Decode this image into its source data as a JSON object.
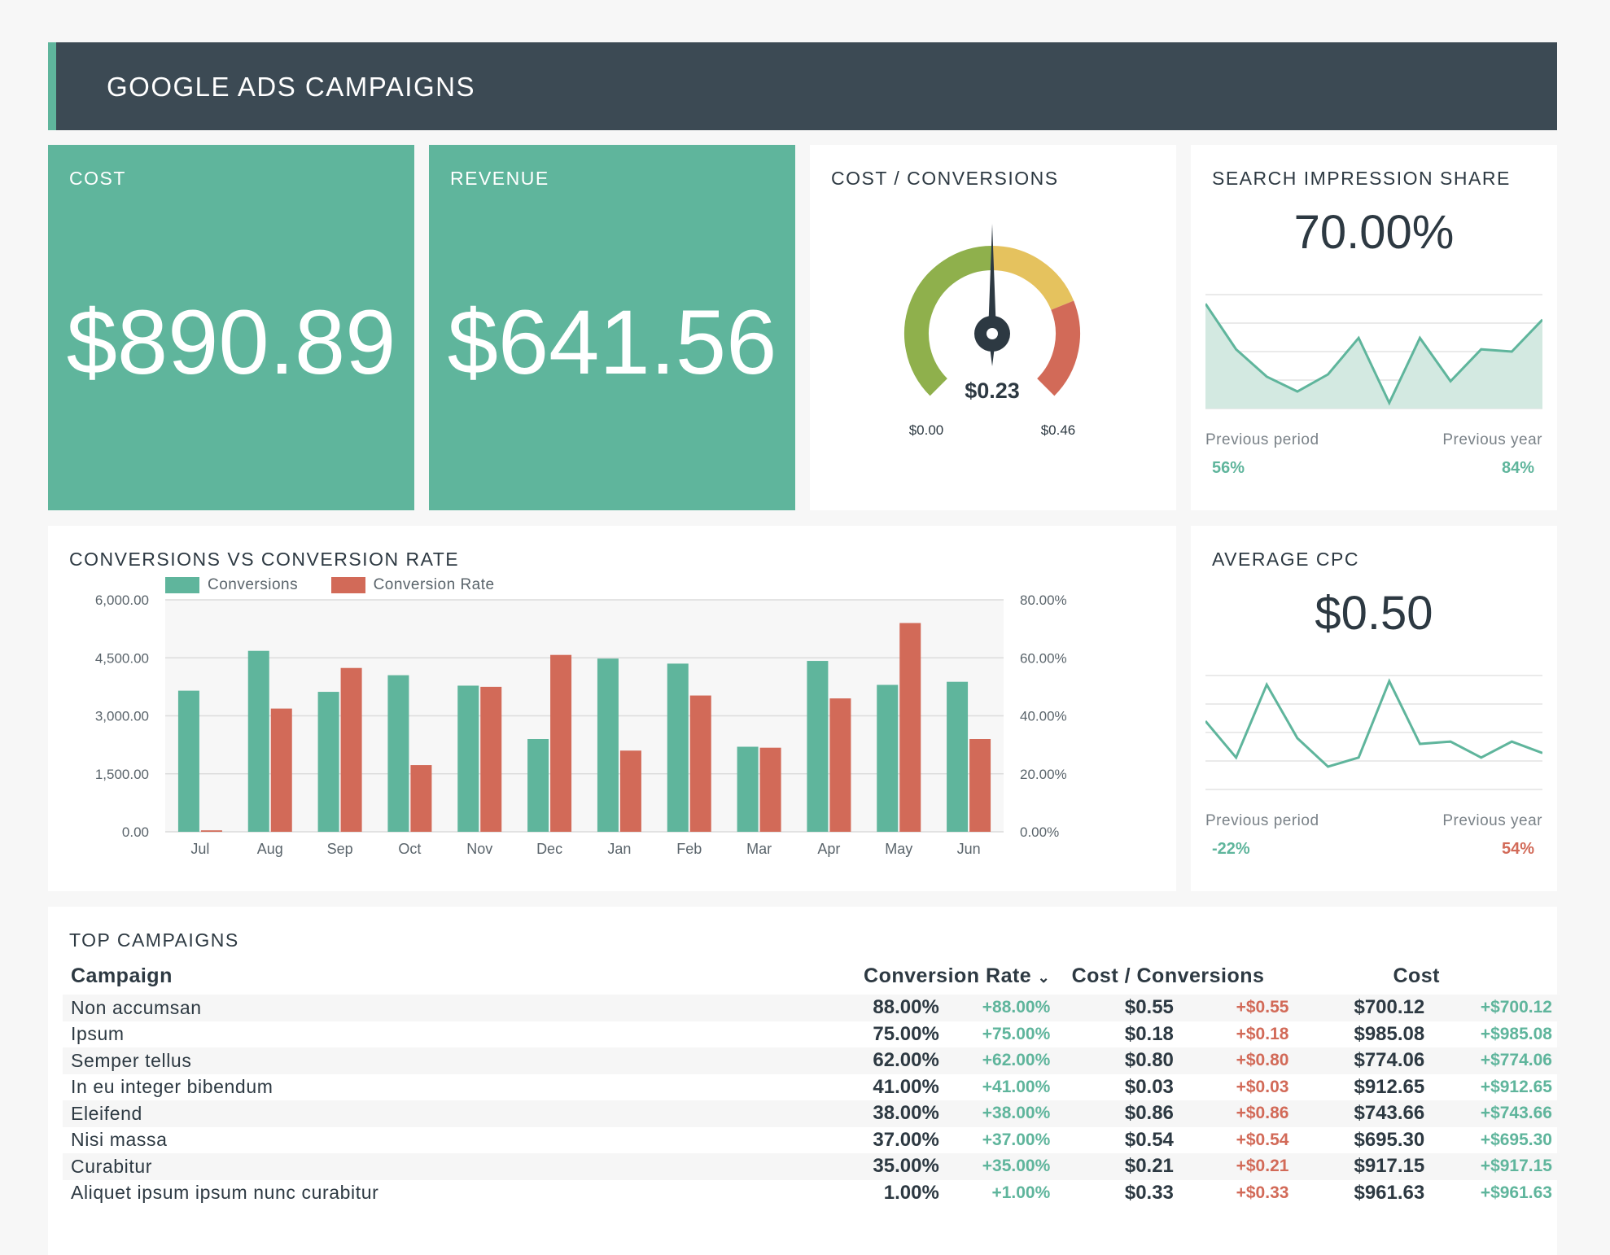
{
  "header": {
    "title": "GOOGLE ADS CAMPAIGNS"
  },
  "colors": {
    "accent": "#5fb59c",
    "negative": "#d26a58",
    "header_bg": "#3c4a54",
    "gauge_green": "#8fb04c",
    "gauge_yellow": "#e5c25e",
    "gauge_red": "#d26a58"
  },
  "cost": {
    "label": "COST",
    "value": "$890.89"
  },
  "revenue": {
    "label": "REVENUE",
    "value": "$641.56"
  },
  "cost_conversions": {
    "label": "COST / CONVERSIONS",
    "value": "$0.23",
    "min_label": "$0.00",
    "max_label": "$0.46",
    "min": 0,
    "max": 0.46,
    "current": 0.23
  },
  "search_impression": {
    "label": "SEARCH IMPRESSION SHARE",
    "value": "70.00%",
    "prev_period_label": "Previous period",
    "prev_year_label": "Previous year",
    "prev_period_value": "56%",
    "prev_year_value": "84%",
    "sparkline": [
      92,
      52,
      28,
      15,
      30,
      62,
      5,
      62,
      24,
      52,
      50,
      78
    ]
  },
  "average_cpc": {
    "label": "AVERAGE CPC",
    "value": "$0.50",
    "prev_period_label": "Previous period",
    "prev_year_label": "Previous year",
    "prev_period_value": "-22%",
    "prev_year_value": "54%",
    "sparkline": [
      60,
      28,
      92,
      45,
      20,
      28,
      95,
      40,
      42,
      28,
      42,
      32
    ]
  },
  "chart_data": {
    "type": "bar",
    "title": "CONVERSIONS VS CONVERSION RATE",
    "categories": [
      "Jul",
      "Aug",
      "Sep",
      "Oct",
      "Nov",
      "Dec",
      "Jan",
      "Feb",
      "Mar",
      "Apr",
      "May",
      "Jun"
    ],
    "series": [
      {
        "name": "Conversions",
        "axis": "left",
        "color": "#5fb59c",
        "values": [
          3650,
          4680,
          3620,
          4050,
          3780,
          2400,
          4480,
          4350,
          2200,
          4420,
          3800,
          3880
        ]
      },
      {
        "name": "Conversion Rate",
        "axis": "right",
        "color": "#d26a58",
        "values": [
          0.5,
          42.5,
          56.5,
          23,
          50,
          61,
          28,
          47,
          29,
          46,
          72,
          32
        ]
      }
    ],
    "left_ticks": [
      "0.00",
      "1,500.00",
      "3,000.00",
      "4,500.00",
      "6,000.00"
    ],
    "right_ticks": [
      "0.00%",
      "20.00%",
      "40.00%",
      "60.00%",
      "80.00%"
    ],
    "ylim_left": [
      0,
      6000
    ],
    "ylim_right": [
      0,
      80
    ]
  },
  "top_campaigns": {
    "label": "TOP CAMPAIGNS",
    "columns": {
      "campaign": "Campaign",
      "conv_rate": "Conversion Rate",
      "cost_conv": "Cost / Conversions",
      "cost": "Cost"
    },
    "rows": [
      {
        "name": "Non accumsan",
        "cr": "88.00%",
        "cr_d": "+88.00%",
        "cc": "$0.55",
        "cc_d": "+$0.55",
        "cost": "$700.12",
        "cost_d": "+$700.12"
      },
      {
        "name": "Ipsum",
        "cr": "75.00%",
        "cr_d": "+75.00%",
        "cc": "$0.18",
        "cc_d": "+$0.18",
        "cost": "$985.08",
        "cost_d": "+$985.08"
      },
      {
        "name": "Semper tellus",
        "cr": "62.00%",
        "cr_d": "+62.00%",
        "cc": "$0.80",
        "cc_d": "+$0.80",
        "cost": "$774.06",
        "cost_d": "+$774.06"
      },
      {
        "name": "In eu integer bibendum",
        "cr": "41.00%",
        "cr_d": "+41.00%",
        "cc": "$0.03",
        "cc_d": "+$0.03",
        "cost": "$912.65",
        "cost_d": "+$912.65"
      },
      {
        "name": "Eleifend",
        "cr": "38.00%",
        "cr_d": "+38.00%",
        "cc": "$0.86",
        "cc_d": "+$0.86",
        "cost": "$743.66",
        "cost_d": "+$743.66"
      },
      {
        "name": "Nisi massa",
        "cr": "37.00%",
        "cr_d": "+37.00%",
        "cc": "$0.54",
        "cc_d": "+$0.54",
        "cost": "$695.30",
        "cost_d": "+$695.30"
      },
      {
        "name": "Curabitur",
        "cr": "35.00%",
        "cr_d": "+35.00%",
        "cc": "$0.21",
        "cc_d": "+$0.21",
        "cost": "$917.15",
        "cost_d": "+$917.15"
      },
      {
        "name": "Aliquet ipsum ipsum nunc curabitur",
        "cr": "1.00%",
        "cr_d": "+1.00%",
        "cc": "$0.33",
        "cc_d": "+$0.33",
        "cost": "$961.63",
        "cost_d": "+$961.63"
      }
    ]
  }
}
